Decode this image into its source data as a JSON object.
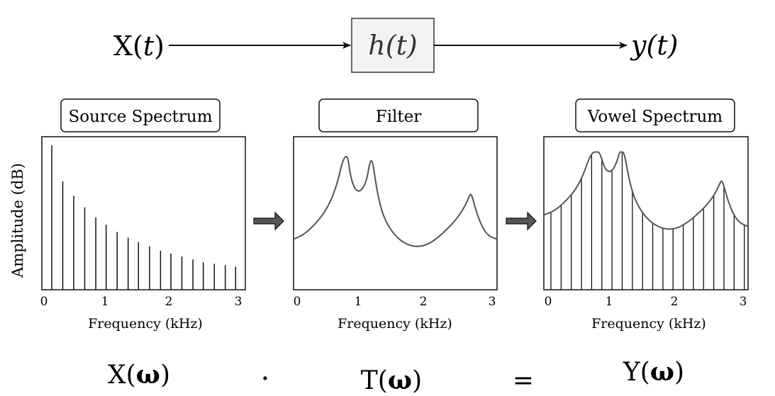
{
  "signal_chain": {
    "input_prefix": "X(",
    "input_var": "t",
    "input_suffix": ")",
    "system": "h(t)",
    "output": "y(t)"
  },
  "panels": [
    {
      "title": "Source Spectrum",
      "ylabel": "Amplitude (dB)",
      "xlabel": "Frequency (kHz)",
      "xticks": [
        "0",
        "1",
        "2",
        "3"
      ],
      "type": "line-spectrum",
      "harmonics_khz": [
        0.12,
        0.29,
        0.46,
        0.63,
        0.8,
        0.96,
        1.13,
        1.3,
        1.46,
        1.63,
        1.8,
        1.96,
        2.13,
        2.3,
        2.46,
        2.63,
        2.8,
        2.96,
        3.13
      ],
      "relative_amplitude": [
        1.0,
        0.75,
        0.65,
        0.57,
        0.5,
        0.45,
        0.4,
        0.36,
        0.33,
        0.3,
        0.27,
        0.25,
        0.23,
        0.21,
        0.19,
        0.18,
        0.17,
        0.16,
        0.15
      ]
    },
    {
      "title": "Filter",
      "xlabel": "Frequency (kHz)",
      "xticks": [
        "0",
        "1",
        "2",
        "3"
      ],
      "type": "envelope"
    },
    {
      "title": "Vowel Spectrum",
      "xlabel": "Frequency (kHz)",
      "xticks": [
        "0",
        "1",
        "2",
        "3"
      ],
      "type": "enveloped-spectrum"
    }
  ],
  "chart_data": [
    {
      "type": "bar",
      "title": "Source Spectrum",
      "xlabel": "Frequency (kHz)",
      "ylabel": "Amplitude (dB)",
      "xlim": [
        0,
        3.3
      ]
    },
    {
      "type": "line",
      "title": "Filter",
      "xlabel": "Frequency (kHz)",
      "xlim": [
        0,
        3.3
      ],
      "formant_peaks_khz": [
        0.83,
        1.37,
        2.68
      ]
    },
    {
      "type": "bar",
      "title": "Vowel Spectrum",
      "xlabel": "Frequency (kHz)",
      "xlim": [
        0,
        3.3
      ],
      "formant_peaks_khz": [
        0.83,
        1.37,
        2.68
      ]
    }
  ],
  "equation": {
    "lhs": "X(ω)",
    "op1": "·",
    "mid": "T(ω)",
    "op2": "=",
    "rhs": "Y(ω)"
  },
  "colors": {
    "line": "#111111",
    "curve": "#555555",
    "arrow_fill": "#555555",
    "system_box_fill": "#f3f3f3",
    "system_box_stroke": "#666666"
  }
}
